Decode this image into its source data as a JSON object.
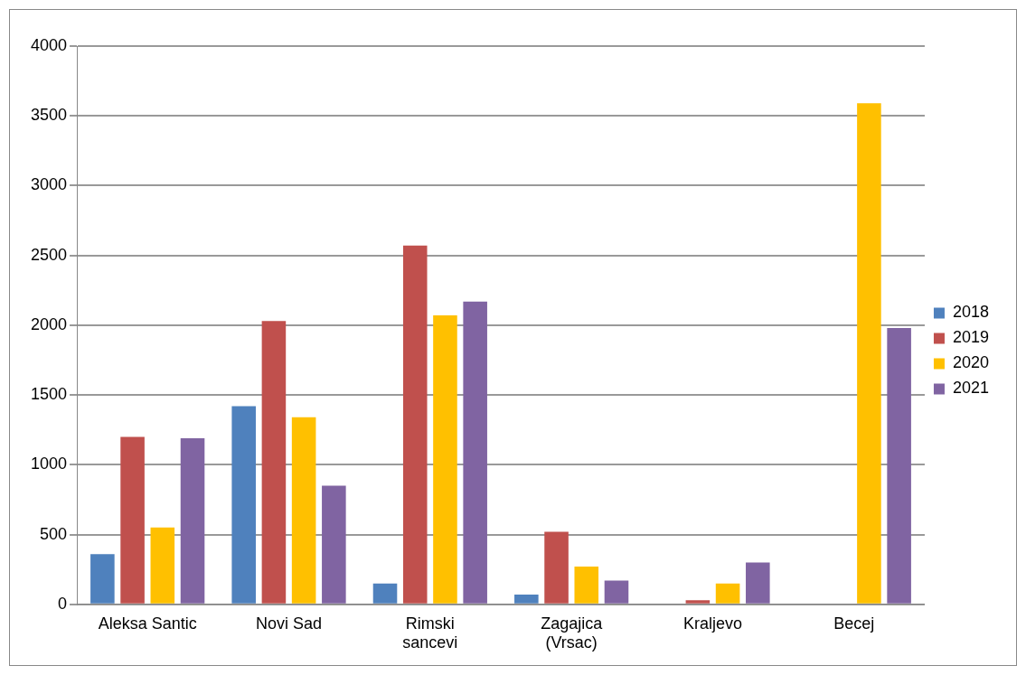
{
  "chart_data": {
    "type": "bar",
    "categories": [
      "Aleksa Santic",
      "Novi Sad",
      "Rimski sancevi",
      "Zagajica (Vrsac)",
      "Kraljevo",
      "Becej"
    ],
    "series": [
      {
        "name": "2018",
        "color": "#4f81bd",
        "values": [
          360,
          1420,
          150,
          70,
          0,
          0
        ]
      },
      {
        "name": "2019",
        "color": "#c0504d",
        "values": [
          1200,
          2030,
          2570,
          520,
          30,
          0
        ]
      },
      {
        "name": "2020",
        "color": "#ffc000",
        "values": [
          550,
          1340,
          2070,
          270,
          150,
          3590
        ]
      },
      {
        "name": "2021",
        "color": "#8064a2",
        "values": [
          1190,
          850,
          2170,
          170,
          300,
          1980
        ]
      }
    ],
    "ylim": [
      0,
      4000
    ],
    "yticks": [
      0,
      500,
      1000,
      1500,
      2000,
      2500,
      3000,
      3500,
      4000
    ],
    "grid": "y",
    "legend": "right"
  }
}
